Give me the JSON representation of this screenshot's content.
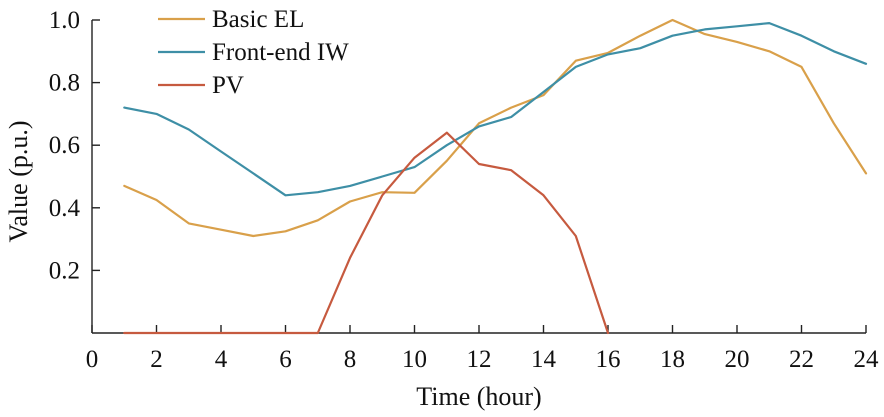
{
  "chart_data": {
    "type": "line",
    "title": "",
    "xlabel": "Time (hour)",
    "ylabel": "Value (p.u.)",
    "xlim": [
      0,
      24
    ],
    "ylim": [
      0,
      1.0
    ],
    "x_ticks": [
      0,
      2,
      4,
      6,
      8,
      10,
      12,
      14,
      16,
      18,
      20,
      22,
      24
    ],
    "y_ticks": [
      0.2,
      0.4,
      0.6,
      0.8,
      1.0
    ],
    "x_tick_labels": [
      "0",
      "2",
      "4",
      "6",
      "8",
      "10",
      "12",
      "14",
      "16",
      "18",
      "20",
      "22",
      "24"
    ],
    "y_tick_labels": [
      "0.2",
      "0.4",
      "0.6",
      "0.8",
      "1.0"
    ],
    "grid": false,
    "legend_position": "top-left",
    "series": [
      {
        "name": "Basic EL",
        "color": "#D9A04A",
        "x": [
          1,
          2,
          3,
          4,
          5,
          6,
          7,
          8,
          9,
          10,
          11,
          12,
          13,
          14,
          15,
          16,
          17,
          18,
          19,
          20,
          21,
          22,
          23,
          24
        ],
        "values": [
          0.47,
          0.425,
          0.35,
          0.33,
          0.31,
          0.325,
          0.36,
          0.42,
          0.45,
          0.448,
          0.55,
          0.67,
          0.72,
          0.76,
          0.87,
          0.895,
          0.95,
          1.0,
          0.955,
          0.93,
          0.9,
          0.85,
          0.67,
          0.51
        ]
      },
      {
        "name": "Front-end IW",
        "color": "#3E8FA6",
        "x": [
          1,
          2,
          3,
          4,
          5,
          6,
          7,
          8,
          9,
          10,
          11,
          12,
          13,
          14,
          15,
          16,
          17,
          18,
          19,
          20,
          21,
          22,
          23,
          24
        ],
        "values": [
          0.72,
          0.7,
          0.65,
          0.58,
          0.51,
          0.44,
          0.45,
          0.47,
          0.5,
          0.53,
          0.6,
          0.66,
          0.69,
          0.77,
          0.85,
          0.89,
          0.91,
          0.95,
          0.97,
          0.98,
          0.99,
          0.95,
          0.9,
          0.86
        ]
      },
      {
        "name": "PV",
        "color": "#C65A3F",
        "x": [
          1,
          2,
          3,
          4,
          5,
          6,
          7,
          8,
          9,
          10,
          11,
          12,
          13,
          14,
          15,
          16
        ],
        "values": [
          0,
          0,
          0,
          0,
          0,
          0,
          0,
          0.24,
          0.44,
          0.56,
          0.64,
          0.54,
          0.52,
          0.44,
          0.31,
          0
        ]
      }
    ]
  }
}
